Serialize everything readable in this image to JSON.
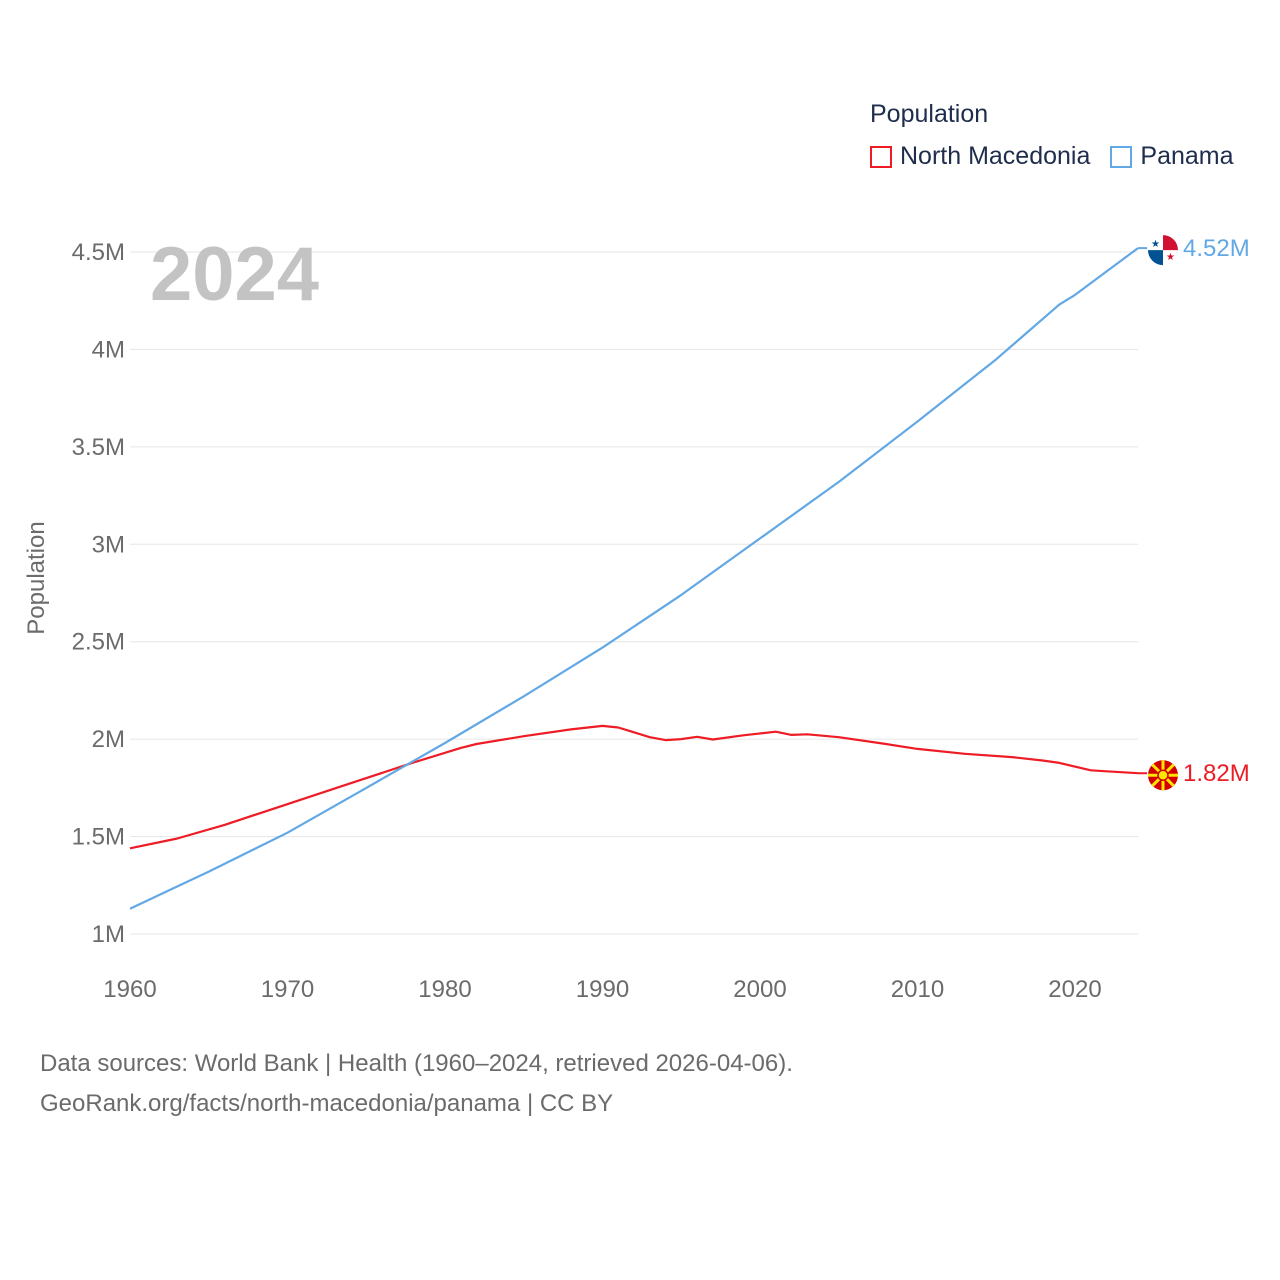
{
  "legend": {
    "title": "Population",
    "items": [
      {
        "name": "North Macedonia",
        "color": "#ee1c25"
      },
      {
        "name": "Panama",
        "color": "#62a8e5"
      }
    ]
  },
  "footer": {
    "line1": "Data sources: World Bank | Health (1960–2024, retrieved 2026-04-06).",
    "line2": "GeoRank.org/facts/north-macedonia/panama | CC BY"
  },
  "chart_data": {
    "type": "line",
    "title": "Population",
    "year_label": "2024",
    "xlabel": "",
    "ylabel": "Population",
    "xlim": [
      1960,
      2024
    ],
    "ylim": [
      1000000,
      4500000
    ],
    "x_ticks": [
      {
        "value": 1960,
        "label": "1960"
      },
      {
        "value": 1970,
        "label": "1970"
      },
      {
        "value": 1980,
        "label": "1980"
      },
      {
        "value": 1990,
        "label": "1990"
      },
      {
        "value": 2000,
        "label": "2000"
      },
      {
        "value": 2010,
        "label": "2010"
      },
      {
        "value": 2020,
        "label": "2020"
      }
    ],
    "y_ticks": [
      {
        "value": 1000000,
        "label": "1M"
      },
      {
        "value": 1500000,
        "label": "1.5M"
      },
      {
        "value": 2000000,
        "label": "2M"
      },
      {
        "value": 2500000,
        "label": "2.5M"
      },
      {
        "value": 3000000,
        "label": "3M"
      },
      {
        "value": 3500000,
        "label": "3.5M"
      },
      {
        "value": 4000000,
        "label": "4M"
      },
      {
        "value": 4500000,
        "label": "4.5M"
      }
    ],
    "series": [
      {
        "name": "North Macedonia",
        "color": "#ee1c25",
        "flag": "north-macedonia-flag",
        "end_label": "1.82M",
        "x": [
          1960,
          1963,
          1966,
          1969,
          1972,
          1975,
          1978,
          1981,
          1982,
          1985,
          1988,
          1990,
          1991,
          1993,
          1994,
          1995,
          1996,
          1997,
          1999,
          2001,
          2002,
          2003,
          2005,
          2008,
          2010,
          2013,
          2016,
          2018,
          2019,
          2021,
          2022,
          2024
        ],
        "y": [
          1440000,
          1490000,
          1560000,
          1640000,
          1720000,
          1800000,
          1880000,
          1955000,
          1975000,
          2015000,
          2050000,
          2068000,
          2060000,
          2010000,
          1995000,
          2000000,
          2012000,
          1998000,
          2020000,
          2038000,
          2022000,
          2025000,
          2010000,
          1975000,
          1950000,
          1925000,
          1908000,
          1890000,
          1878000,
          1840000,
          1835000,
          1825000
        ]
      },
      {
        "name": "Panama",
        "color": "#62a8e5",
        "flag": "panama-flag",
        "end_label": "4.52M",
        "x": [
          1960,
          1965,
          1970,
          1975,
          1980,
          1985,
          1990,
          1995,
          2000,
          2005,
          2010,
          2015,
          2019,
          2020,
          2024
        ],
        "y": [
          1130000,
          1320000,
          1520000,
          1750000,
          1980000,
          2220000,
          2470000,
          2740000,
          3030000,
          3320000,
          3630000,
          3950000,
          4230000,
          4280000,
          4520000
        ]
      }
    ]
  }
}
